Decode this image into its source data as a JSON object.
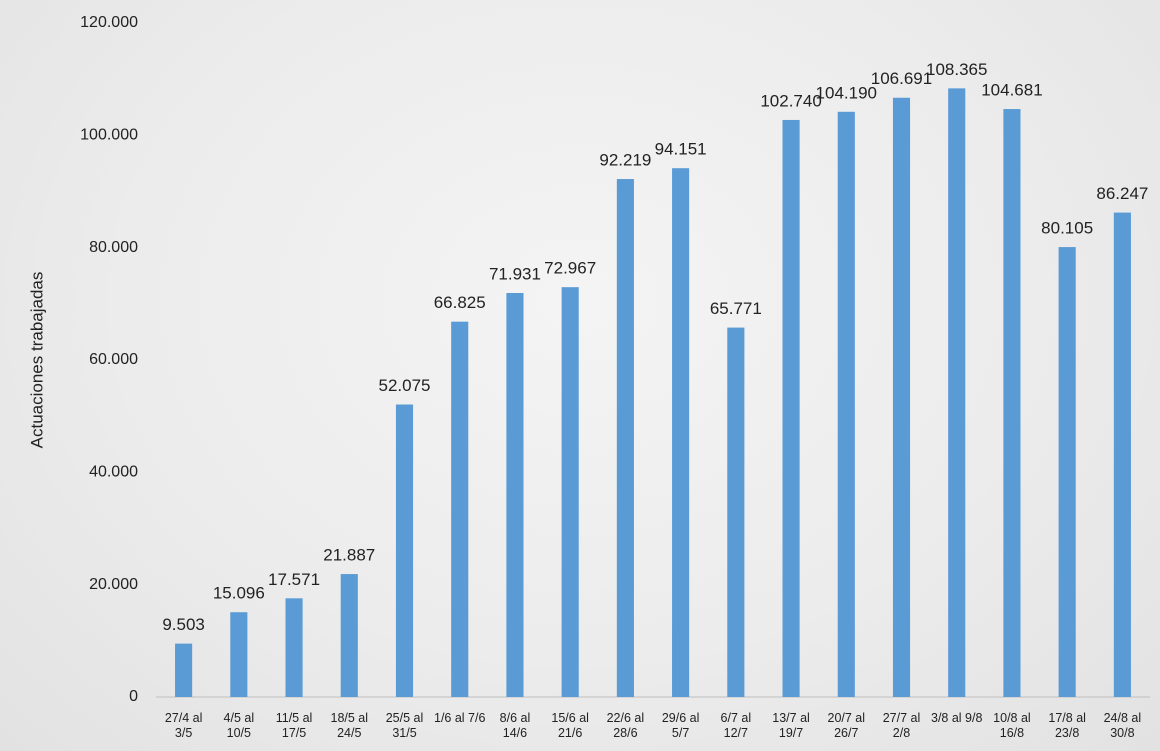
{
  "chart_data": {
    "type": "bar",
    "y_axis_label": "Actuaciones trabajadas",
    "categories": [
      "27/4 al 3/5",
      "4/5 al 10/5",
      "11/5 al 17/5",
      "18/5 al 24/5",
      "25/5 al 31/5",
      "1/6 al 7/6",
      "8/6 al 14/6",
      "15/6 al 21/6",
      "22/6 al 28/6",
      "29/6 al 5/7",
      "6/7 al 12/7",
      "13/7 al 19/7",
      "20/7 al 26/7",
      "27/7 al 2/8",
      "3/8 al 9/8",
      "10/8 al 16/8",
      "17/8 al 23/8",
      "24/8 al 30/8"
    ],
    "values": [
      9503,
      15096,
      17571,
      21887,
      52075,
      66825,
      71931,
      72967,
      92219,
      94151,
      65771,
      102740,
      104190,
      106691,
      108365,
      104681,
      80105,
      86247
    ],
    "value_labels": [
      "9.503",
      "15.096",
      "17.571",
      "21.887",
      "52.075",
      "66.825",
      "71.931",
      "72.967",
      "92.219",
      "94.151",
      "65.771",
      "102.740",
      "104.190",
      "106.691",
      "108.365",
      "104.681",
      "80.105",
      "86.247"
    ],
    "color": "#5b9bd5",
    "ylim": [
      0,
      120000
    ],
    "yticks": [
      0,
      {
        "value": 20000,
        "label": "20.000"
      },
      {
        "value": 40000,
        "label": "40.000"
      },
      {
        "value": 60000,
        "label": "60.000"
      },
      {
        "value": 80000,
        "label": "80.000"
      },
      {
        "value": 100000,
        "label": "100.000"
      },
      {
        "value": 120000,
        "label": "120.000"
      }
    ],
    "grid": false
  }
}
